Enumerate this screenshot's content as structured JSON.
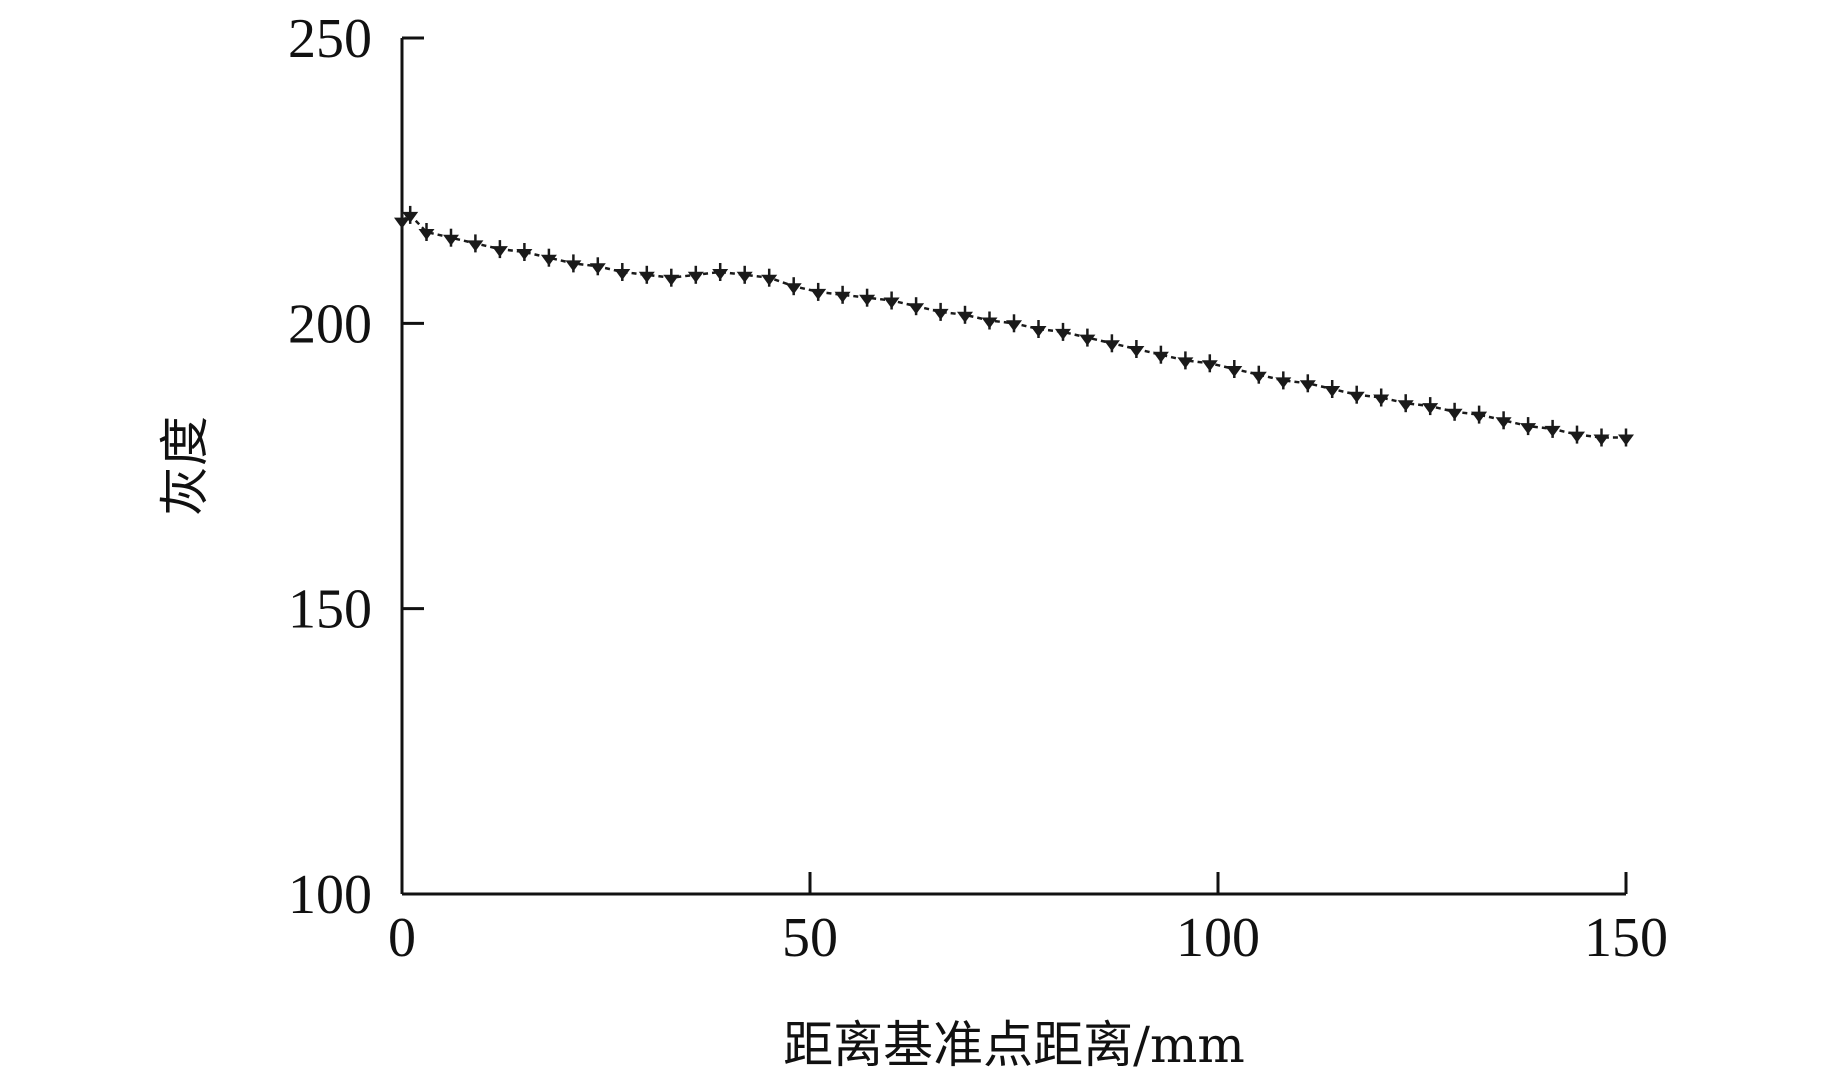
{
  "chart_data": {
    "type": "line",
    "title": "",
    "xlabel": "距离基准点距离/mm",
    "ylabel": "灰度",
    "xlim": [
      0,
      150
    ],
    "ylim": [
      100,
      250
    ],
    "xticks": [
      0,
      50,
      100,
      150
    ],
    "yticks": [
      100,
      150,
      200,
      250
    ],
    "xtick_labels": [
      "0",
      "50",
      "100",
      "150"
    ],
    "ytick_labels": [
      "100",
      "150",
      "200",
      "250"
    ],
    "grid": false,
    "legend": "none",
    "series": [
      {
        "color": "#1a1a1a",
        "marker": "triangle-tick",
        "x": [
          0,
          1,
          3,
          6,
          9,
          12,
          15,
          18,
          21,
          24,
          27,
          30,
          33,
          36,
          39,
          42,
          45,
          48,
          51,
          54,
          57,
          60,
          63,
          66,
          69,
          72,
          75,
          78,
          81,
          84,
          87,
          90,
          93,
          96,
          99,
          102,
          105,
          108,
          111,
          114,
          117,
          120,
          123,
          126,
          129,
          132,
          135,
          138,
          141,
          144,
          147,
          150
        ],
        "y": [
          218,
          219,
          216,
          215,
          214,
          213,
          212.5,
          211.5,
          210.5,
          210,
          209,
          208.5,
          208,
          208.5,
          209,
          208.5,
          208,
          206.5,
          205.5,
          205,
          204.5,
          204,
          203,
          202,
          201.5,
          200.5,
          200,
          199,
          198.5,
          197.5,
          196.5,
          195.5,
          194.5,
          193.5,
          193,
          192,
          191,
          190,
          189.5,
          188.5,
          187.5,
          187,
          186,
          185.5,
          184.5,
          184,
          183,
          182,
          181.5,
          180.5,
          180,
          180
        ]
      }
    ]
  }
}
